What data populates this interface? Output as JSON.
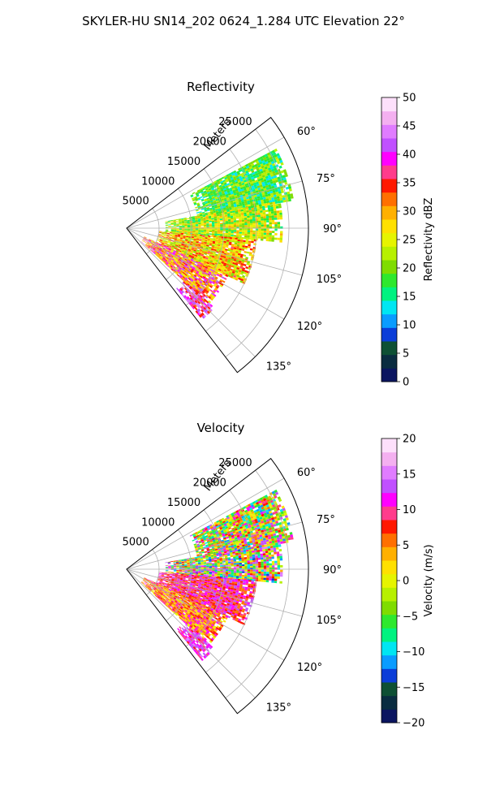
{
  "figure": {
    "title": "SKYLER-HU  SN14_202  0624_1.284 UTC Elevation 22°"
  },
  "chart_data": [
    {
      "type": "heatmap",
      "projection": "polar-sector",
      "title": "Reflectivity",
      "range_label": "Meters",
      "theta_range_deg": [
        52.5,
        142.5
      ],
      "r_range_m": [
        0,
        28000
      ],
      "r_ticks": [
        5000,
        10000,
        15000,
        20000,
        25000
      ],
      "r_tick_labels": [
        "5000",
        "10000",
        "15000",
        "20000",
        "25000"
      ],
      "theta_ticks": [
        60,
        75,
        90,
        105,
        120,
        135
      ],
      "theta_tick_labels": [
        "60°",
        "75°",
        "90°",
        "105°",
        "120°",
        "135°"
      ],
      "grid": true,
      "colorbar": {
        "label": "Reflectivity dBZ",
        "range": [
          0,
          50
        ],
        "ticks": [
          0,
          5,
          10,
          15,
          20,
          25,
          30,
          35,
          40,
          45,
          50
        ],
        "tick_labels": [
          "0",
          "5",
          "10",
          "15",
          "20",
          "25",
          "30",
          "35",
          "40",
          "45",
          "50"
        ],
        "colors": [
          "#0b1560",
          "#0a2c40",
          "#0e5034",
          "#0b3dd8",
          "#0a9cff",
          "#00e6f2",
          "#00f280",
          "#2ee82e",
          "#7fdc00",
          "#b7f000",
          "#e6f400",
          "#ffe000",
          "#ffb000",
          "#ff7000",
          "#ff1800",
          "#ff3c8c",
          "#ff00ff",
          "#c050ff",
          "#e07cff",
          "#f4b0f0",
          "#fde0fb"
        ]
      },
      "echo": {
        "extent_theta_deg": [
          62,
          140
        ],
        "extent_r_m": [
          3000,
          26000
        ],
        "values_by_sector": [
          {
            "theta": [
              62,
              80
            ],
            "r": [
              11000,
              26000
            ],
            "value_range": [
              13,
              24
            ]
          },
          {
            "theta": [
              80,
              95
            ],
            "r": [
              6000,
              24000
            ],
            "value_range": [
              15,
              30
            ]
          },
          {
            "theta": [
              95,
              115
            ],
            "r": [
              5000,
              20000
            ],
            "value_range": [
              20,
              36
            ]
          },
          {
            "theta": [
              115,
              132
            ],
            "r": [
              3000,
              17000
            ],
            "value_range": [
              24,
              42
            ]
          },
          {
            "theta": [
              132,
              140
            ],
            "r": [
              12000,
              18000
            ],
            "value_range": [
              33,
              45
            ]
          }
        ]
      }
    },
    {
      "type": "heatmap",
      "projection": "polar-sector",
      "title": "Velocity",
      "range_label": "Meters",
      "theta_range_deg": [
        52.5,
        142.5
      ],
      "r_range_m": [
        0,
        28000
      ],
      "r_ticks": [
        5000,
        10000,
        15000,
        20000,
        25000
      ],
      "r_tick_labels": [
        "5000",
        "10000",
        "15000",
        "20000",
        "25000"
      ],
      "theta_ticks": [
        60,
        75,
        90,
        105,
        120,
        135
      ],
      "theta_tick_labels": [
        "60°",
        "75°",
        "90°",
        "105°",
        "120°",
        "135°"
      ],
      "grid": true,
      "colorbar": {
        "label": "Velocity (m/s)",
        "range": [
          -20,
          20
        ],
        "ticks": [
          -20,
          -15,
          -10,
          -5,
          0,
          5,
          10,
          15,
          20
        ],
        "tick_labels": [
          "−20",
          "−15",
          "−10",
          "−5",
          "0",
          "5",
          "10",
          "15",
          "20"
        ],
        "colors": [
          "#0b1560",
          "#0a2c40",
          "#0e5034",
          "#0b3dd8",
          "#0a9cff",
          "#00e6f2",
          "#00f280",
          "#2ee82e",
          "#7fdc00",
          "#b7f000",
          "#e6f400",
          "#ffe000",
          "#ffb000",
          "#ff7000",
          "#ff1800",
          "#ff3c8c",
          "#ff00ff",
          "#c050ff",
          "#e07cff",
          "#f4b0f0",
          "#fde0fb"
        ]
      },
      "echo": {
        "extent_theta_deg": [
          62,
          140
        ],
        "extent_r_m": [
          3000,
          26000
        ],
        "values_by_sector": [
          {
            "theta": [
              62,
              80
            ],
            "r": [
              11000,
              26000
            ],
            "value_range": [
              -12,
              14
            ]
          },
          {
            "theta": [
              80,
              95
            ],
            "r": [
              6000,
              24000
            ],
            "value_range": [
              -13,
              16
            ]
          },
          {
            "theta": [
              95,
              115
            ],
            "r": [
              5000,
              20000
            ],
            "value_range": [
              5,
              14
            ]
          },
          {
            "theta": [
              115,
              132
            ],
            "r": [
              3000,
              17000
            ],
            "value_range": [
              0,
              12
            ]
          },
          {
            "theta": [
              132,
              140
            ],
            "r": [
              12000,
              18000
            ],
            "value_range": [
              8,
              15
            ]
          }
        ]
      }
    }
  ]
}
